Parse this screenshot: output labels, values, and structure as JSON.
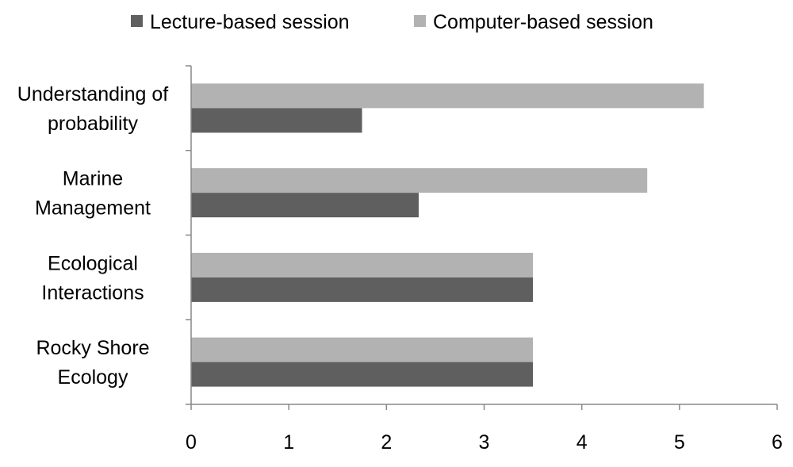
{
  "chart_data": {
    "type": "bar",
    "orientation": "horizontal",
    "title": "",
    "xlabel": "",
    "ylabel": "",
    "categories": [
      [
        "Understanding of",
        "probability"
      ],
      [
        "Marine",
        "Management"
      ],
      [
        "Ecological",
        "Interactions"
      ],
      [
        "Rocky Shore",
        "Ecology"
      ]
    ],
    "series": [
      {
        "name": "Lecture-based session",
        "color": "#5f5f5f",
        "values": [
          1.75,
          2.33,
          3.5,
          3.5
        ]
      },
      {
        "name": "Computer-based session",
        "color": "#b2b2b2",
        "values": [
          5.25,
          4.67,
          3.5,
          3.5
        ]
      }
    ],
    "xlim": [
      0,
      6
    ],
    "xticks": [
      "0",
      "1",
      "2",
      "3",
      "4",
      "5",
      "6"
    ],
    "grid": false,
    "legend": "top",
    "axis_color": "#888888"
  }
}
